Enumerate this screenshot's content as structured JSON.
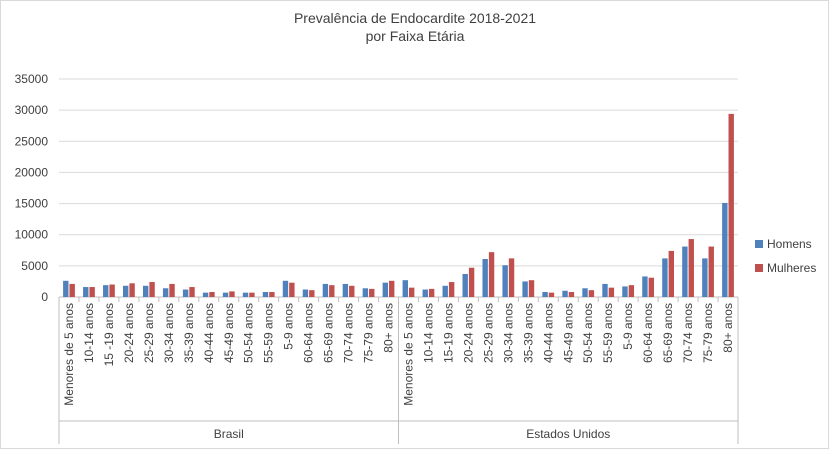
{
  "chart_data": {
    "type": "bar",
    "title": [
      "Prevalência de Endocardite 2018-2021",
      "por Faixa Etária"
    ],
    "xlabel": "",
    "ylabel": "",
    "ylim": [
      0,
      35000
    ],
    "yticks": [
      0,
      5000,
      10000,
      15000,
      20000,
      25000,
      30000,
      35000
    ],
    "grid": true,
    "legend_position": "right",
    "groups": [
      {
        "name": "Brasil",
        "categories": [
          "Menores de 5 anos",
          "10-14 anos",
          "15 -19 anos",
          "20-24 anos",
          "25-29 anos",
          "30-34 anos",
          "35-39 anos",
          "40-44 anos",
          "45-49 anos",
          "50-54 anos",
          "55-59 anos",
          "5-9 anos",
          "60-64 anos",
          "65-69 anos",
          "70-74 anos",
          "75-79 anos",
          "80+ anos"
        ],
        "series": [
          {
            "name": "Homens",
            "values": [
              2600,
              1600,
              1900,
              1800,
              1800,
              1400,
              1200,
              700,
              700,
              700,
              800,
              2600,
              1200,
              2100,
              2100,
              1400,
              2300
            ]
          },
          {
            "name": "Mulheres",
            "values": [
              2100,
              1600,
              2000,
              2200,
              2400,
              2100,
              1600,
              800,
              900,
              700,
              800,
              2300,
              1100,
              1900,
              1800,
              1300,
              2600
            ]
          }
        ]
      },
      {
        "name": "Estados Unidos",
        "categories": [
          "Menores de 5 anos",
          "10-14 anos",
          "15-19 anos",
          "20-24 anos",
          "25-29 anos",
          "30-34 anos",
          "35-39 anos",
          "40-44 anos",
          "45-49 anos",
          "50-54 anos",
          "55-59 anos",
          "5-9 anos",
          "60-64 anos",
          "65-69 anos",
          "70-74 anos",
          "75-79 anos",
          "80+ anos"
        ],
        "series": [
          {
            "name": "Homens",
            "values": [
              2700,
              1200,
              1800,
              3700,
              6100,
              5100,
              2500,
              800,
              1000,
              1400,
              2100,
              1700,
              3300,
              6200,
              8100,
              6200,
              15100
            ]
          },
          {
            "name": "Mulheres",
            "values": [
              1500,
              1300,
              2400,
              4700,
              7200,
              6200,
              2700,
              700,
              800,
              1100,
              1500,
              1900,
              3100,
              7400,
              9300,
              8100,
              29400
            ]
          }
        ]
      }
    ],
    "colors": {
      "Homens": "#4f81bd",
      "Mulheres": "#c0504d",
      "grid": "#d9d9d9",
      "axis": "#bfbfbf",
      "text": "#404040"
    }
  }
}
